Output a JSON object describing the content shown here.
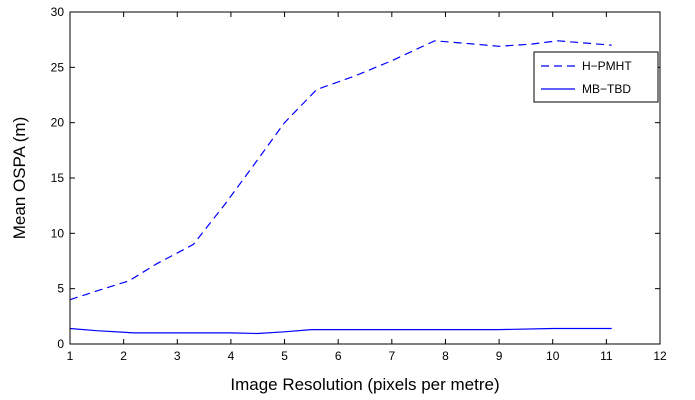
{
  "chart_data": {
    "type": "line",
    "title": "",
    "xlabel": "Image Resolution (pixels per metre)",
    "ylabel": "Mean OSPA (m)",
    "xlim": [
      1,
      12
    ],
    "ylim": [
      0,
      30
    ],
    "xticks": [
      1,
      2,
      3,
      4,
      5,
      6,
      7,
      8,
      9,
      10,
      11,
      12
    ],
    "yticks": [
      0,
      5,
      10,
      15,
      20,
      25,
      30
    ],
    "grid": false,
    "legend_position": "top-right",
    "series": [
      {
        "name": "H−PMHT",
        "style": "dashed",
        "color": "#0000ff",
        "x": [
          1,
          1.5,
          2.1,
          2.6,
          3.3,
          3.9,
          4.4,
          5.0,
          5.6,
          6.3,
          7.0,
          7.8,
          8.3,
          9.0,
          9.6,
          10.1,
          10.6,
          11.1
        ],
        "y": [
          4.0,
          4.8,
          5.7,
          7.2,
          9.0,
          12.7,
          16.0,
          20.0,
          23.0,
          24.2,
          25.6,
          27.4,
          27.2,
          26.9,
          27.1,
          27.4,
          27.2,
          27.0
        ]
      },
      {
        "name": "MB−TBD",
        "style": "solid",
        "color": "#0000ff",
        "x": [
          1,
          1.5,
          2.2,
          3.0,
          4.0,
          4.5,
          5.0,
          5.5,
          6.0,
          7.0,
          8.0,
          9.0,
          10.0,
          11.1
        ],
        "y": [
          1.4,
          1.2,
          1.0,
          1.0,
          1.0,
          0.95,
          1.1,
          1.3,
          1.3,
          1.3,
          1.3,
          1.3,
          1.4,
          1.4
        ]
      }
    ]
  }
}
